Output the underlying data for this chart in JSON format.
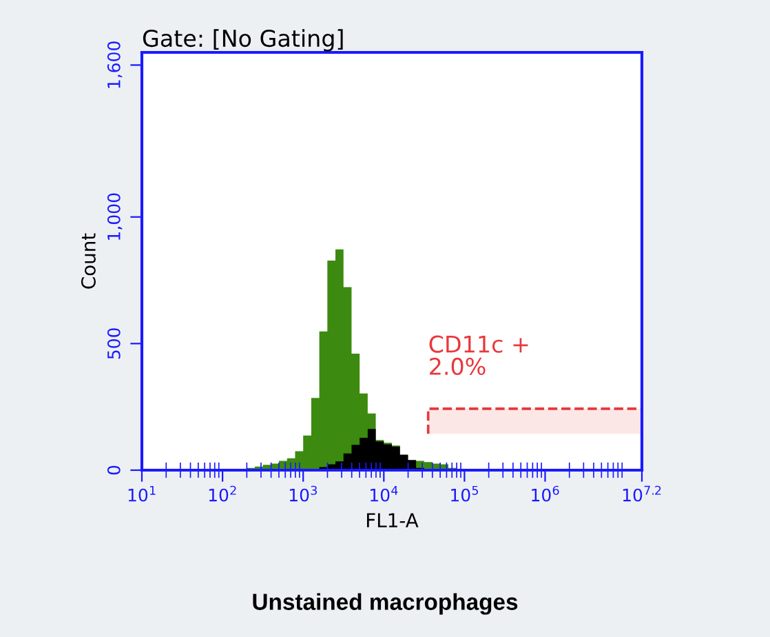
{
  "chart_data": {
    "type": "histogram",
    "title": "Gate: [No Gating]",
    "xlabel": "FL1-A",
    "ylabel": "Count",
    "log": "x",
    "annotations": [
      "Unstained macrophages"
    ],
    "bins": [
      199.5,
      251.2,
      316.2,
      398.1,
      501.2,
      631.0,
      794.3,
      1000,
      1258.9,
      1584.9,
      1995.3,
      2511.9,
      3162.3,
      3981.1,
      5011.9,
      6309.6,
      7943.3,
      10000,
      12589,
      15849,
      19953,
      25119,
      31623,
      39811,
      50119,
      63096,
      79433
    ],
    "series": [
      {
        "color": "#3c8a10",
        "values": [
          9,
          14,
          21,
          26,
          37,
          47,
          75,
          137,
          285,
          548,
          828,
          872,
          723,
          460,
          303,
          224,
          119,
          108,
          97,
          58,
          37,
          37,
          32,
          26,
          23,
          9
        ]
      },
      {
        "color": "#000000",
        "values": [
          0,
          0,
          0,
          0,
          0,
          0,
          0,
          0,
          5,
          12,
          23,
          35,
          66,
          100,
          128,
          163,
          114,
          102,
          93,
          61,
          40,
          9,
          0,
          0,
          0,
          0
        ]
      }
    ],
    "xlim": [
      10,
      15848932
    ],
    "xticks": [
      {
        "value": 10,
        "label": "10$^{1}$"
      },
      {
        "value": 100,
        "label": "10$^{2}$"
      },
      {
        "value": 1000,
        "label": "10$^{3}$"
      },
      {
        "value": 10000,
        "label": "10$^{4}$"
      },
      {
        "value": 100000,
        "label": "10$^{5}$"
      },
      {
        "value": 1000000,
        "label": "10$^{6}$"
      },
      {
        "value": 15848932,
        "label": "10$^{7.2}$"
      }
    ],
    "ylim": [
      0,
      1650
    ],
    "yticks": [
      0,
      500,
      {
        "value": 1000,
        "label": "1,000"
      },
      {
        "value": 1600,
        "label": "1,600"
      }
    ],
    "bands": [
      {
        "axis": "x",
        "from": 35481,
        "to": 15848932,
        "label": "CD11c +\n2.0%",
        "color": "#e8383d"
      }
    ],
    "grid": false,
    "legend": false
  }
}
